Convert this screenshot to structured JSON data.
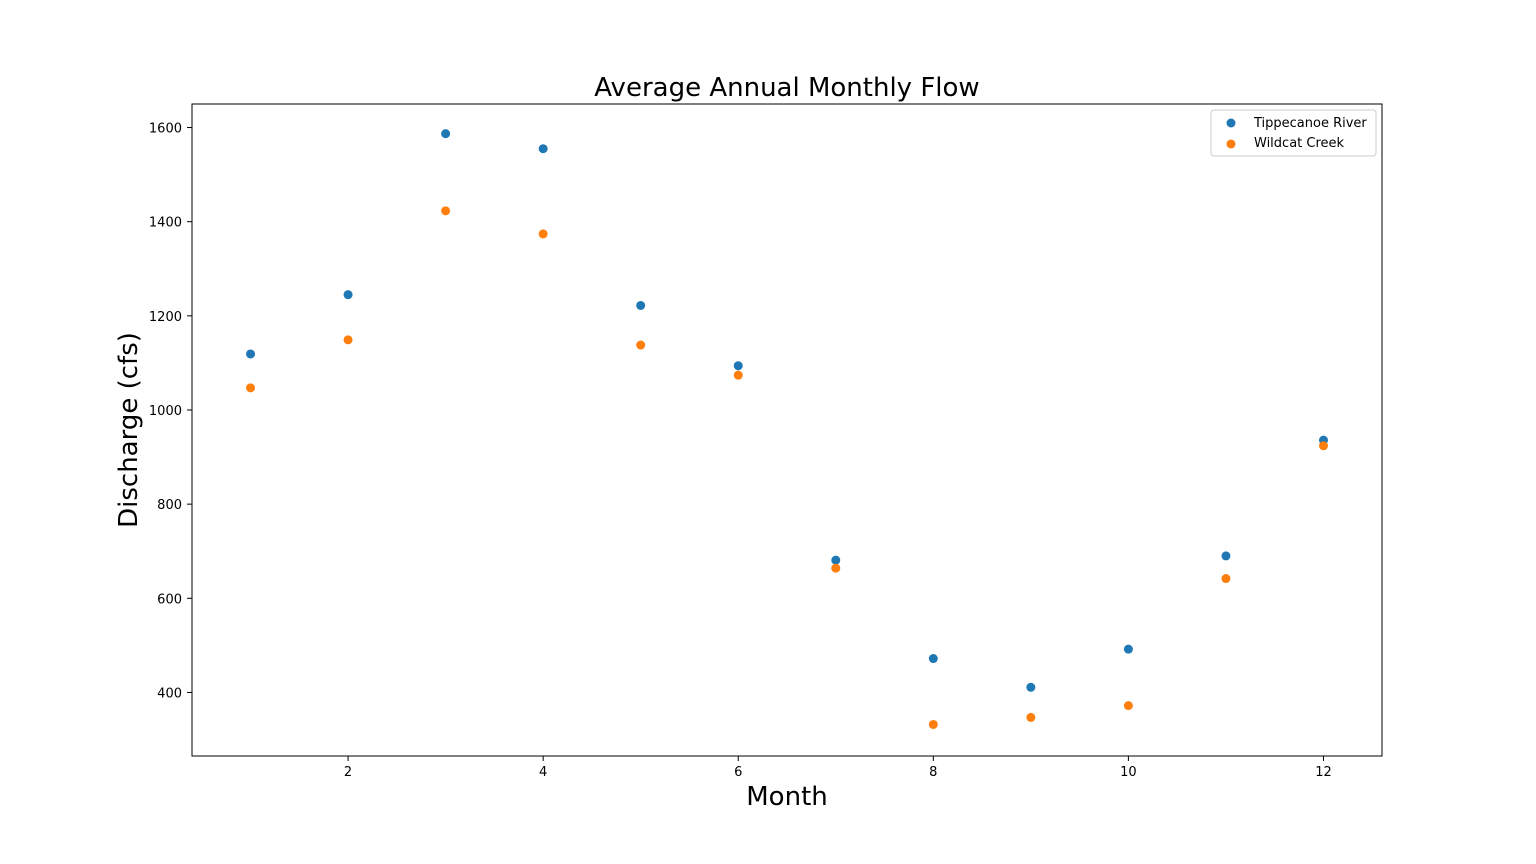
{
  "chart_data": {
    "type": "scatter",
    "title": "Average Annual Monthly Flow",
    "xlabel": "Month",
    "ylabel": "Discharge (cfs)",
    "xlim": [
      0.4,
      12.6
    ],
    "ylim": [
      265,
      1650
    ],
    "xticks": [
      2,
      4,
      6,
      8,
      10,
      12
    ],
    "yticks": [
      400,
      600,
      800,
      1000,
      1200,
      1400,
      1600
    ],
    "grid": false,
    "legend_position": "top-right",
    "x": [
      1,
      2,
      3,
      4,
      5,
      6,
      7,
      8,
      9,
      10,
      11,
      12
    ],
    "series": [
      {
        "name": "Tippecanoe River",
        "color": "#1f77b4",
        "values": [
          1119,
          1245,
          1587,
          1555,
          1222,
          1094,
          681,
          472,
          411,
          492,
          690,
          936
        ]
      },
      {
        "name": "Wildcat Creek",
        "color": "#ff7f0e",
        "values": [
          1047,
          1149,
          1423,
          1374,
          1138,
          1074,
          664,
          332,
          347,
          372,
          642,
          924
        ]
      }
    ]
  }
}
